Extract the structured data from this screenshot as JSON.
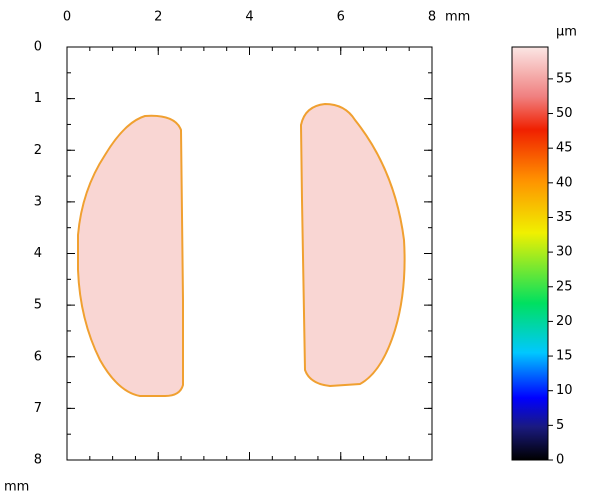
{
  "chart_data": {
    "type": "heatmap",
    "x_unit": "mm",
    "y_unit": "mm",
    "colorbar_unit": "µm",
    "xlim": [
      0,
      8
    ],
    "xticks": [
      0,
      2,
      4,
      6,
      8
    ],
    "ylim": [
      0,
      8
    ],
    "yticks": [
      0,
      1,
      2,
      3,
      4,
      5,
      6,
      7,
      8
    ],
    "zlim": [
      0,
      59.6
    ],
    "zticks": [
      0,
      5,
      10,
      15,
      20,
      25,
      30,
      35,
      40,
      45,
      50,
      55
    ]
  }
}
